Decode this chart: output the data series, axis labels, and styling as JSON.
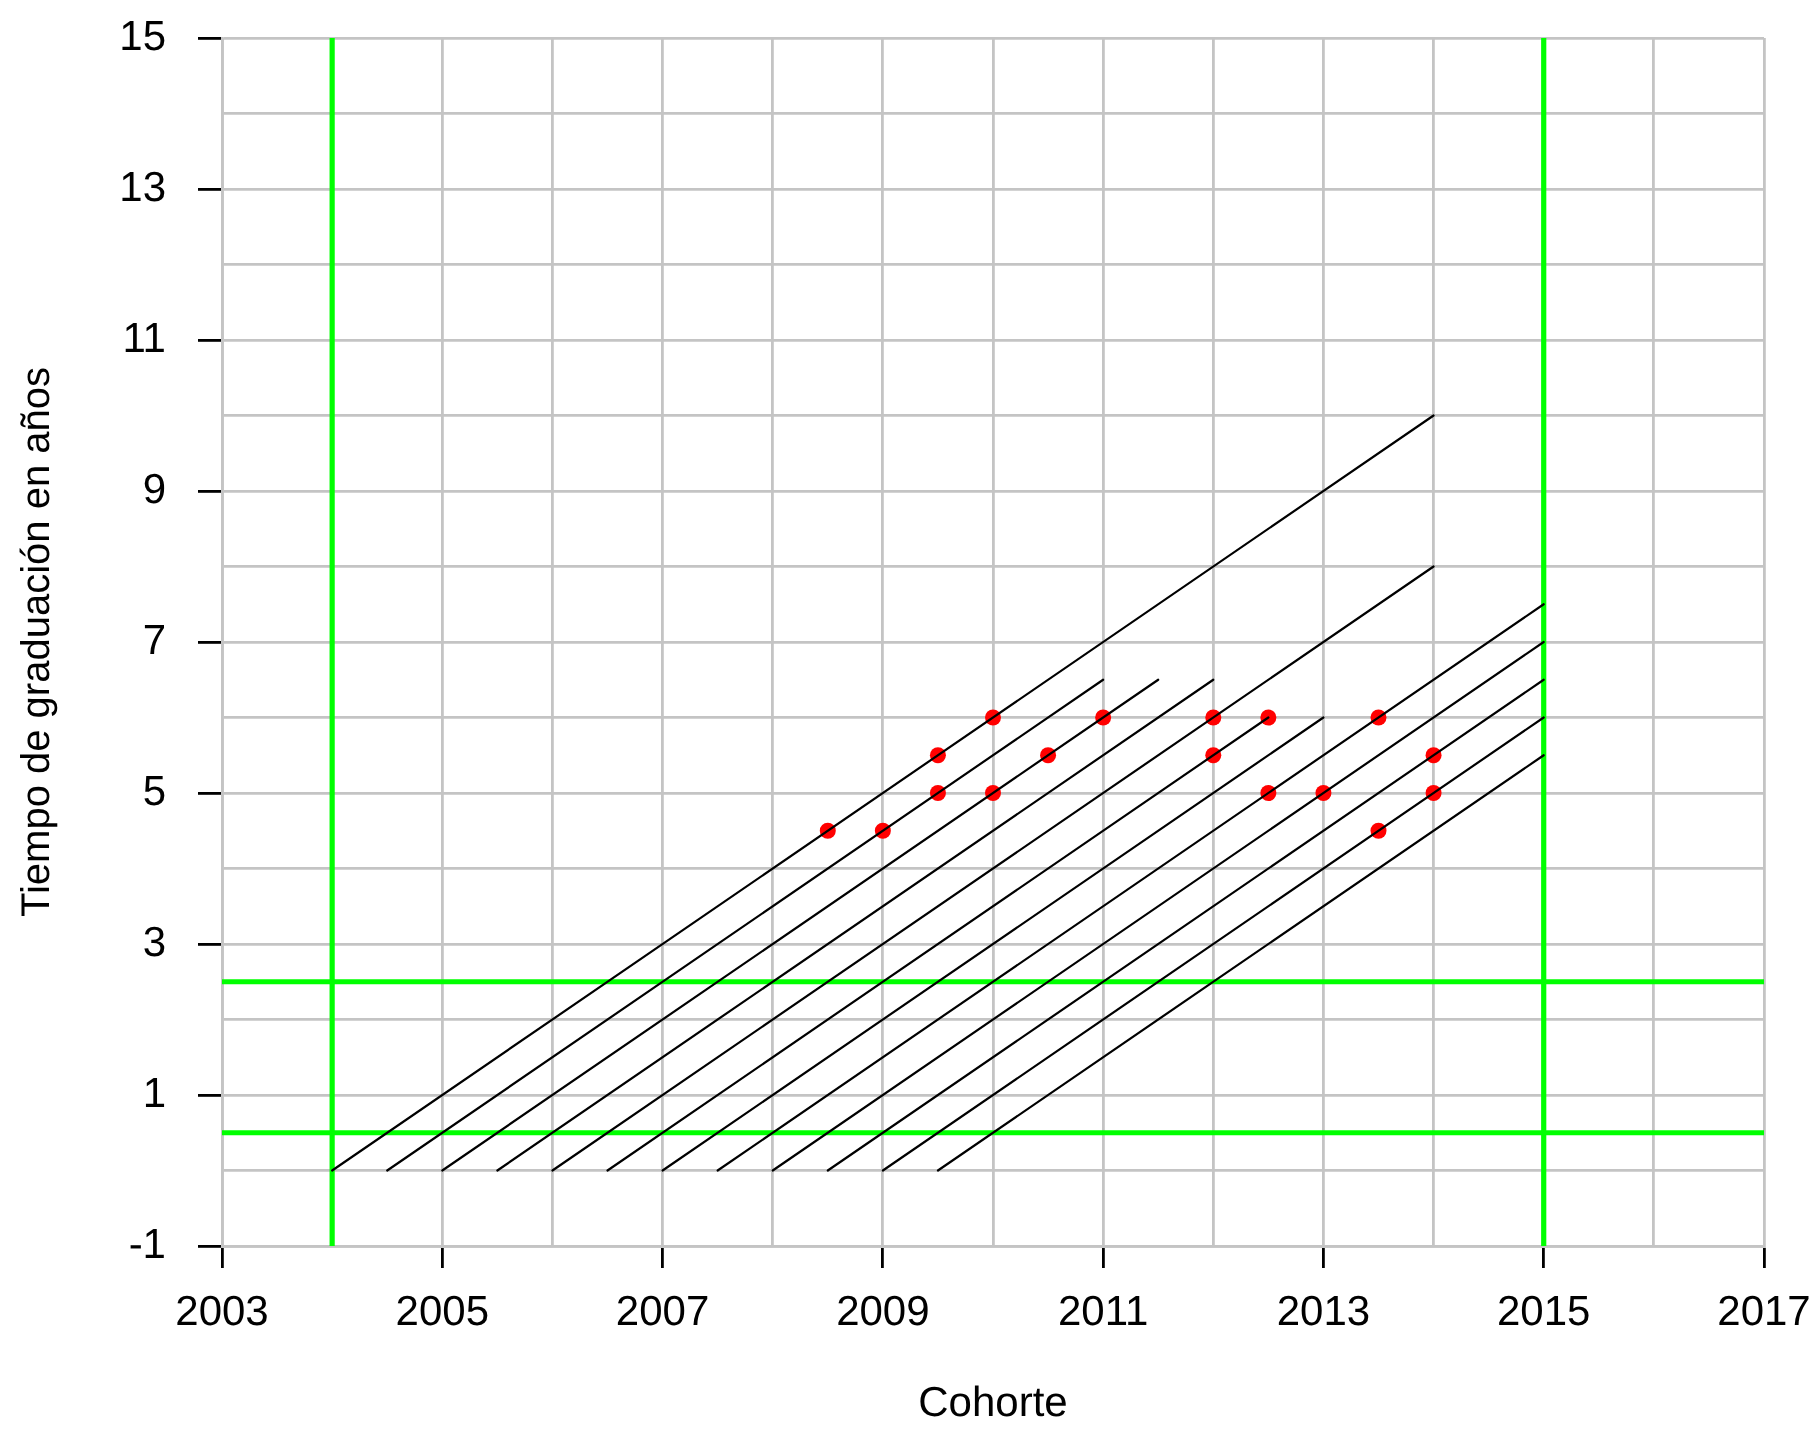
{
  "chart_data": {
    "type": "scatter",
    "xlabel": "Cohorte",
    "ylabel": "Tiempo de graduación en años",
    "xlim": [
      2003,
      2017
    ],
    "ylim": [
      -1,
      15
    ],
    "xticks": [
      2003,
      2005,
      {
        "value": 2006,
        "label": null
      },
      2007,
      {
        "value": 2008,
        "label": null
      },
      2009,
      {
        "value": 2010,
        "label": null
      },
      2011,
      {
        "value": 2012,
        "label": null
      },
      2013,
      {
        "value": 2014,
        "label": null
      },
      2015,
      {
        "value": 2016,
        "label": null
      },
      2017
    ],
    "yticks": [
      -1,
      {
        "value": 0,
        "label": null
      },
      1,
      {
        "value": 2,
        "label": null
      },
      3,
      {
        "value": 4,
        "label": null
      },
      5,
      {
        "value": 6,
        "label": null
      },
      7,
      {
        "value": 8,
        "label": null
      },
      9,
      {
        "value": 10,
        "label": null
      },
      11,
      {
        "value": 12,
        "label": null
      },
      13,
      {
        "value": 14,
        "label": null
      },
      15
    ],
    "grid": true,
    "legend": false,
    "series": [
      {
        "type": "line",
        "color": "#000000",
        "marker": "none",
        "x": [
          2004,
          2014
        ],
        "values": [
          0,
          10
        ]
      },
      {
        "type": "line",
        "color": "#000000",
        "marker": "none",
        "x": [
          2004.5,
          2011
        ],
        "values": [
          0,
          6.5
        ]
      },
      {
        "type": "line",
        "color": "#000000",
        "marker": "none",
        "x": [
          2005,
          2011.5
        ],
        "values": [
          0,
          6.5
        ]
      },
      {
        "type": "line",
        "color": "#000000",
        "marker": "none",
        "x": [
          2005.5,
          2012
        ],
        "values": [
          0,
          6.5
        ]
      },
      {
        "type": "line",
        "color": "#000000",
        "marker": "none",
        "x": [
          2006,
          2014
        ],
        "values": [
          0,
          8
        ]
      },
      {
        "type": "line",
        "color": "#000000",
        "marker": "none",
        "x": [
          2006.5,
          2012.5
        ],
        "values": [
          0,
          6
        ]
      },
      {
        "type": "line",
        "color": "#000000",
        "marker": "none",
        "x": [
          2007,
          2013
        ],
        "values": [
          0,
          6
        ]
      },
      {
        "type": "line",
        "color": "#000000",
        "marker": "none",
        "x": [
          2007.5,
          2015
        ],
        "values": [
          0,
          7.5
        ]
      },
      {
        "type": "line",
        "color": "#000000",
        "marker": "none",
        "x": [
          2008,
          2015
        ],
        "values": [
          0,
          7
        ]
      },
      {
        "type": "line",
        "color": "#000000",
        "marker": "none",
        "x": [
          2008.5,
          2015
        ],
        "values": [
          0,
          6.5
        ]
      },
      {
        "type": "line",
        "color": "#000000",
        "marker": "none",
        "x": [
          2009,
          2015
        ],
        "values": [
          0,
          6
        ]
      },
      {
        "type": "line",
        "color": "#000000",
        "marker": "none",
        "x": [
          2009.5,
          2015
        ],
        "values": [
          0,
          5.5
        ]
      },
      {
        "type": "scatter",
        "color": "#ff0000",
        "marker": "circle",
        "x": [
          2008.5,
          2009,
          2009.5,
          2009.5,
          2010,
          2010,
          2010.5,
          2011,
          2012,
          2012,
          2012.5,
          2012.5,
          2013,
          2013.5,
          2013.5,
          2014,
          2014
        ],
        "values": [
          4.5,
          4.5,
          5.5,
          5,
          6,
          5,
          5.5,
          6,
          6,
          5.5,
          6,
          5,
          5,
          6,
          4.5,
          5.5,
          5
        ]
      }
    ],
    "ref_lines": [
      {
        "axis": "x",
        "value": 2004,
        "color": "#00ff00"
      },
      {
        "axis": "x",
        "value": 2015,
        "color": "#00ff00"
      },
      {
        "axis": "y",
        "value": 2.5,
        "color": "#00ff00"
      },
      {
        "axis": "y",
        "value": 0.5,
        "color": "#00ff00"
      }
    ]
  }
}
